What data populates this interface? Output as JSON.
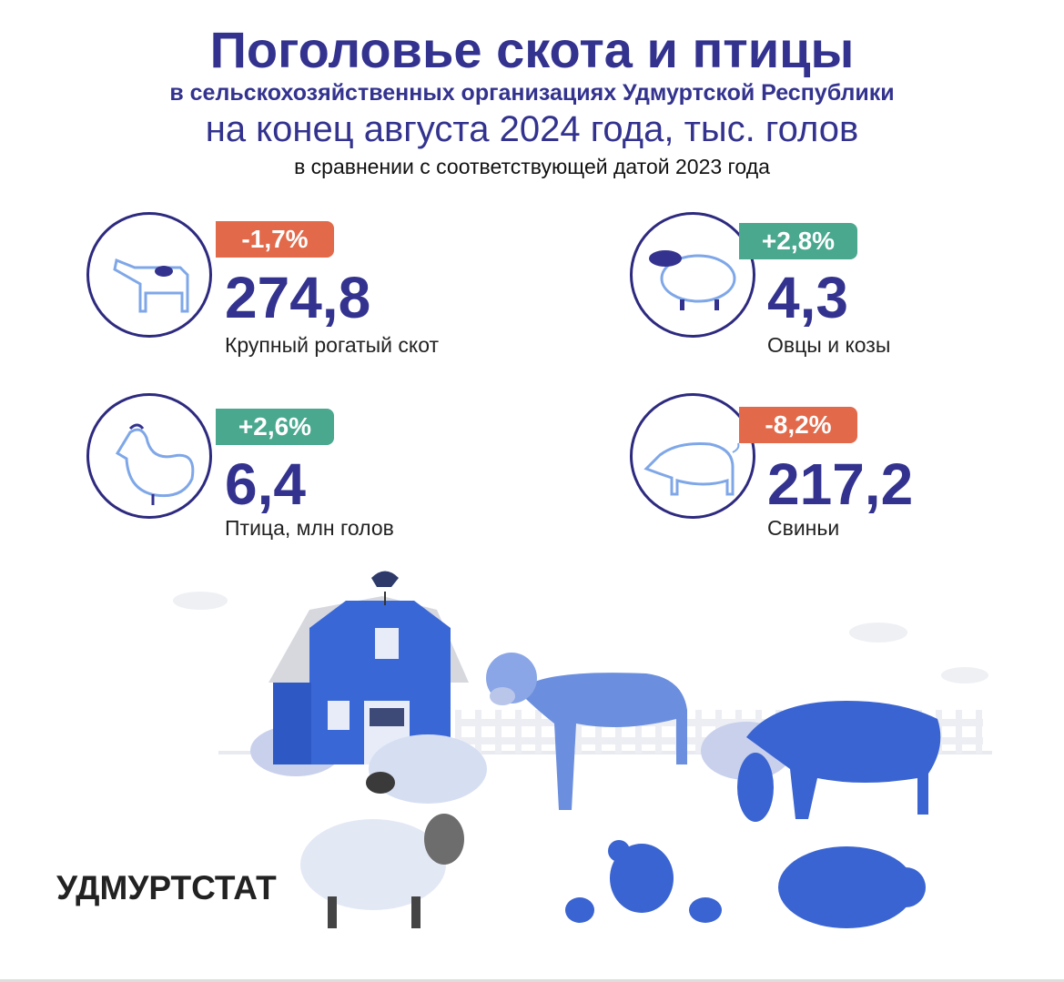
{
  "header": {
    "title": "Поголовье скота и птицы",
    "subtitle": "в сельскохозяйственных организациях Удмуртской Республики",
    "period": "на конец августа 2024 года, тыс. голов",
    "comparison": "в сравнении с соответствующей датой 2023 года"
  },
  "items": [
    {
      "change": "-1,7%",
      "value": "274,8",
      "label": "Крупный рогатый скот"
    },
    {
      "change": "+2,8%",
      "value": "4,3",
      "label": "Овцы и козы"
    },
    {
      "change": "+2,6%",
      "value": "6,4",
      "label": "Птица, млн голов"
    },
    {
      "change": "-8,2%",
      "value": "217,2",
      "label": "Свиньи"
    }
  ],
  "footer": {
    "organization": "УДМУРТСТАТ"
  }
}
